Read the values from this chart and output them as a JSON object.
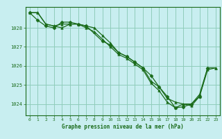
{
  "title": "Graphe pression niveau de la mer (hPa)",
  "bg_color": "#c8eef0",
  "grid_color": "#90ccbb",
  "line_color": "#1a6b1a",
  "marker_color": "#1a6b1a",
  "xlim": [
    -0.5,
    23.5
  ],
  "ylim": [
    1023.4,
    1029.1
  ],
  "yticks": [
    1024,
    1025,
    1026,
    1027,
    1028
  ],
  "xticks": [
    0,
    1,
    2,
    3,
    4,
    5,
    6,
    7,
    8,
    9,
    10,
    11,
    12,
    13,
    14,
    15,
    16,
    17,
    18,
    19,
    20,
    21,
    22,
    23
  ],
  "series1_x": [
    0,
    1,
    2,
    3,
    4,
    5,
    6,
    7,
    8,
    9,
    10,
    11,
    12,
    13,
    14,
    15,
    16,
    17,
    18,
    19,
    20,
    21,
    22,
    23
  ],
  "series1_y": [
    1028.8,
    1028.8,
    1028.2,
    1028.1,
    1028.2,
    1028.2,
    1028.2,
    1028.1,
    1028.0,
    1027.6,
    1027.2,
    1026.7,
    1026.5,
    1026.2,
    1025.9,
    1025.2,
    1024.9,
    1024.3,
    1024.1,
    1024.0,
    1023.9,
    1024.4,
    1025.8,
    1025.9
  ],
  "series2_x": [
    0,
    1,
    2,
    3,
    4,
    5,
    6,
    7,
    8,
    9,
    10,
    11,
    12,
    13,
    14,
    15,
    16,
    17,
    18,
    19,
    20,
    21,
    22,
    23
  ],
  "series2_y": [
    1028.8,
    1028.8,
    1028.2,
    1028.1,
    1028.0,
    1028.2,
    1028.2,
    1028.0,
    1027.8,
    1027.4,
    1027.0,
    1026.6,
    1026.4,
    1026.1,
    1025.8,
    1025.1,
    1024.7,
    1024.1,
    1023.8,
    1024.0,
    1024.0,
    1024.5,
    1025.9,
    1025.9
  ],
  "series3_x": [
    0,
    1,
    2,
    3,
    4,
    5,
    6,
    7,
    9,
    10,
    11,
    12,
    13,
    14,
    15,
    16,
    17,
    18,
    19,
    20,
    21,
    22
  ],
  "series3_y": [
    1028.8,
    1028.4,
    1028.1,
    1028.0,
    1028.3,
    1028.3,
    1028.2,
    1028.1,
    1027.3,
    1027.1,
    1026.7,
    1026.5,
    1026.2,
    1025.9,
    1025.5,
    1024.9,
    1024.4,
    1023.8,
    1023.85,
    1024.0,
    1024.4,
    1025.9
  ]
}
